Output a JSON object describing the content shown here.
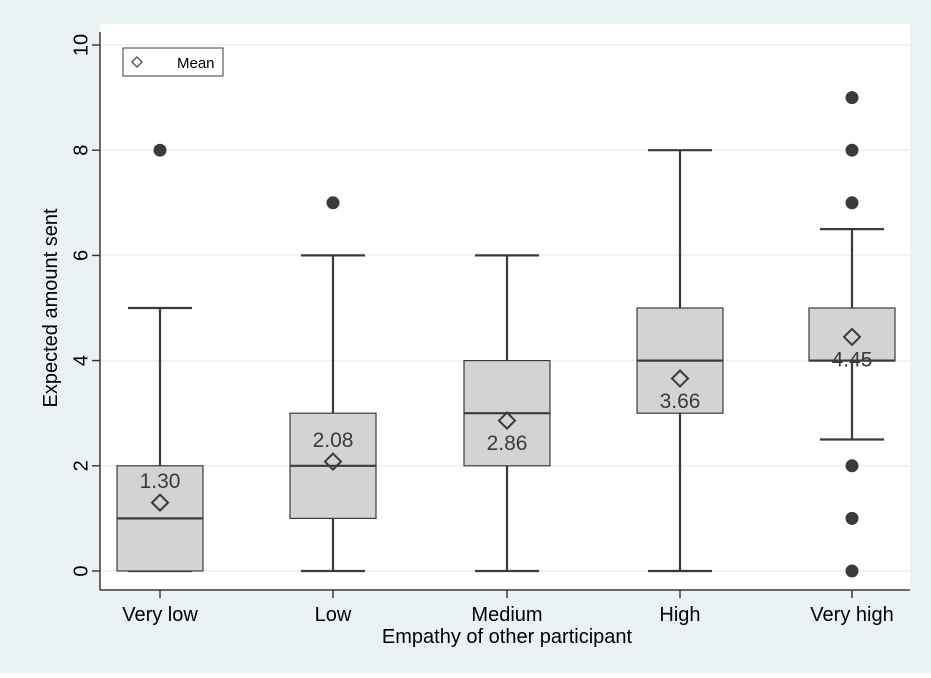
{
  "chart_data": {
    "type": "boxplot",
    "title": "",
    "xlabel": "Empathy of other participant",
    "ylabel": "Expected amount sent",
    "ylim": [
      0,
      10
    ],
    "yticks": [
      0,
      2,
      4,
      6,
      8,
      10
    ],
    "grid": true,
    "legend": {
      "position": "top-left",
      "entries": [
        "Mean"
      ]
    },
    "categories": [
      "Very low",
      "Low",
      "Medium",
      "High",
      "Very high"
    ],
    "boxes": [
      {
        "category": "Very low",
        "whisker_low": 0,
        "q1": 0,
        "median": 1,
        "q3": 2,
        "whisker_high": 5,
        "mean": 1.3,
        "mean_label": "1.30",
        "outliers": [
          8
        ]
      },
      {
        "category": "Low",
        "whisker_low": 0,
        "q1": 1,
        "median": 2,
        "q3": 3,
        "whisker_high": 6,
        "mean": 2.08,
        "mean_label": "2.08",
        "outliers": [
          7
        ]
      },
      {
        "category": "Medium",
        "whisker_low": 0,
        "q1": 2,
        "median": 3,
        "q3": 4,
        "whisker_high": 6,
        "mean": 2.86,
        "mean_label": "2.86",
        "outliers": []
      },
      {
        "category": "High",
        "whisker_low": 0,
        "q1": 3,
        "median": 4,
        "q3": 5,
        "whisker_high": 8,
        "mean": 3.66,
        "mean_label": "3.66",
        "outliers": []
      },
      {
        "category": "Very high",
        "whisker_low": 2.5,
        "q1": 4,
        "median": 4,
        "q3": 5,
        "whisker_high": 6.5,
        "mean": 4.45,
        "mean_label": "4.45",
        "outliers": [
          0,
          1,
          2,
          7,
          8,
          9
        ]
      }
    ],
    "colors": {
      "background": "#eaf2f3",
      "plot_background": "#ffffff",
      "box_fill": "#d3d3d3",
      "line": "#3b3b3b",
      "grid": "#eaf2f3",
      "text": "#000000"
    }
  }
}
